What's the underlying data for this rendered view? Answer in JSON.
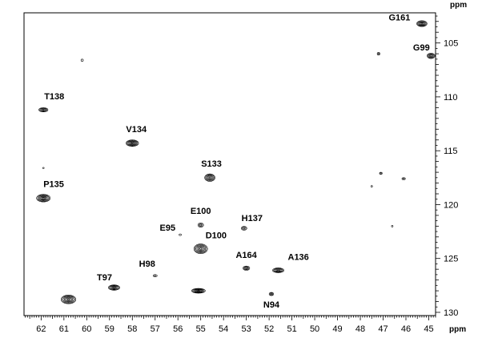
{
  "chart_data": {
    "type": "scatter",
    "title": "",
    "xlabel": "ppm",
    "ylabel": "ppm",
    "x_reversed": true,
    "y_reversed": true,
    "xlim": [
      62.75,
      44.7
    ],
    "ylim": [
      102.2,
      130.3
    ],
    "x_ticks": [
      62,
      61,
      60,
      59,
      58,
      57,
      56,
      55,
      54,
      53,
      52,
      51,
      50,
      49,
      48,
      47,
      46,
      45
    ],
    "y_ticks": [
      105,
      110,
      115,
      120,
      125,
      130
    ],
    "grid": false,
    "peaks": [
      {
        "label": "G161",
        "x": 45.3,
        "y": 103.2,
        "w": 0.45,
        "h": 0.55
      },
      {
        "label": "G99",
        "x": 44.9,
        "y": 106.2,
        "w": 0.35,
        "h": 0.5
      },
      {
        "label": "T138",
        "x": 61.9,
        "y": 111.2,
        "w": 0.4,
        "h": 0.4
      },
      {
        "label": "V134",
        "x": 58.0,
        "y": 114.3,
        "w": 0.55,
        "h": 0.6
      },
      {
        "label": "S133",
        "x": 54.6,
        "y": 117.5,
        "w": 0.45,
        "h": 0.7
      },
      {
        "label": "P135",
        "x": 61.9,
        "y": 119.4,
        "w": 0.6,
        "h": 0.7
      },
      {
        "label": "E100",
        "x": 55.0,
        "y": 121.9,
        "w": 0.25,
        "h": 0.4
      },
      {
        "label": "H137",
        "x": 53.1,
        "y": 122.2,
        "w": 0.25,
        "h": 0.35
      },
      {
        "label": "E95",
        "x": 55.9,
        "y": 122.8,
        "w": 0.1,
        "h": 0.15
      },
      {
        "label": "D100",
        "x": 55.0,
        "y": 124.1,
        "w": 0.6,
        "h": 0.9
      },
      {
        "label": "A164",
        "x": 53.0,
        "y": 125.9,
        "w": 0.3,
        "h": 0.4
      },
      {
        "label": "A136",
        "x": 51.6,
        "y": 126.1,
        "w": 0.5,
        "h": 0.45
      },
      {
        "label": "H98",
        "x": 57.0,
        "y": 126.6,
        "w": 0.18,
        "h": 0.22
      },
      {
        "label": "T97",
        "x": 58.8,
        "y": 127.7,
        "w": 0.5,
        "h": 0.5
      },
      {
        "label": "N94",
        "x": 51.9,
        "y": 128.3,
        "w": 0.2,
        "h": 0.3
      },
      {
        "label": "",
        "x": 55.1,
        "y": 128.0,
        "w": 0.6,
        "h": 0.45
      },
      {
        "label": "",
        "x": 60.8,
        "y": 128.8,
        "w": 0.65,
        "h": 0.8
      },
      {
        "label": "",
        "x": 60.2,
        "y": 106.6,
        "w": 0.1,
        "h": 0.2
      },
      {
        "label": "",
        "x": 47.2,
        "y": 106.0,
        "w": 0.12,
        "h": 0.25
      },
      {
        "label": "",
        "x": 47.1,
        "y": 117.1,
        "w": 0.12,
        "h": 0.2
      },
      {
        "label": "",
        "x": 46.1,
        "y": 117.6,
        "w": 0.15,
        "h": 0.2
      },
      {
        "label": "",
        "x": 47.5,
        "y": 118.3,
        "w": 0.05,
        "h": 0.15
      },
      {
        "label": "",
        "x": 46.6,
        "y": 122.0,
        "w": 0.05,
        "h": 0.15
      },
      {
        "label": "",
        "x": 61.9,
        "y": 116.6,
        "w": 0.03,
        "h": 0.1
      }
    ],
    "label_offsets_note": ""
  }
}
